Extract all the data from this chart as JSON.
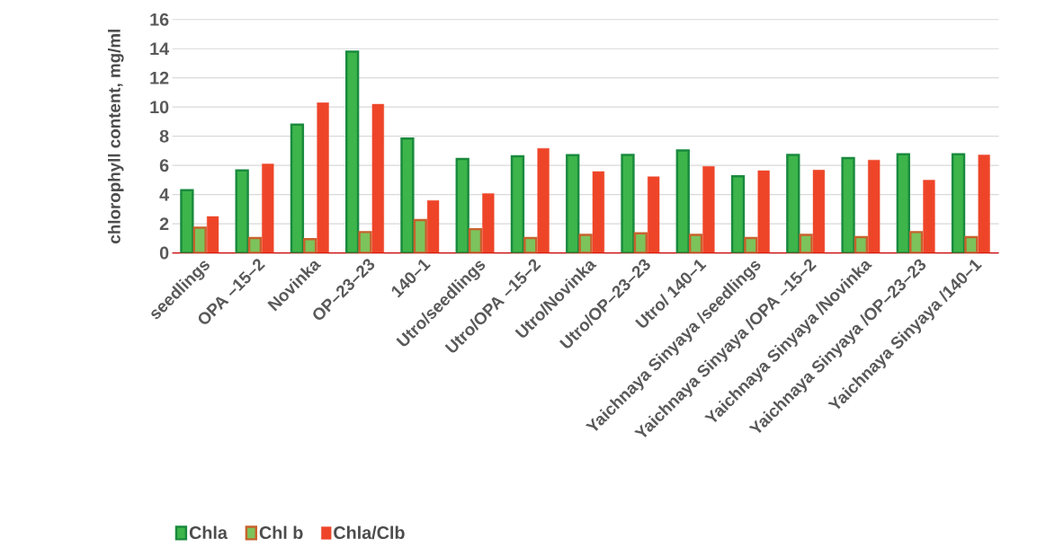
{
  "chart_data": {
    "type": "bar",
    "ylabel": "chlorophyll content, mg/ml",
    "categories": [
      "seedlings",
      "OPA –15–2",
      "Novinka",
      "OP–23–23",
      "140–1",
      "Utro/seedlings",
      "Utro/OPA –15–2",
      "Utro/Novinka",
      "Utro/OP–23–23",
      "Utro/ 140–1",
      "Yaichnaya Sinyaya /seedlings",
      "Yaichnaya Sinyaya /OPA –15–2",
      "Yaichnaya Sinyaya /Novinka",
      "Yaichnaya Sinyaya /OP–23–23",
      "Yaichnaya Sinyaya /140–1"
    ],
    "series": [
      {
        "name": "Chla",
        "color": "#3db54a",
        "values": [
          4.3,
          5.66,
          8.8,
          13.8,
          7.84,
          6.44,
          6.62,
          6.7,
          6.72,
          7.03,
          5.25,
          6.72,
          6.5,
          6.76,
          6.76
        ]
      },
      {
        "name": "Chl b",
        "color": "#7cc35c",
        "values": [
          1.73,
          1.02,
          0.94,
          1.43,
          2.26,
          1.63,
          1.02,
          1.24,
          1.34,
          1.24,
          1.02,
          1.24,
          1.08,
          1.43,
          1.08
        ]
      },
      {
        "name": "Chla/Clb",
        "color": "#ee4529",
        "values": [
          2.5,
          6.1,
          10.3,
          10.2,
          3.6,
          4.07,
          7.17,
          5.58,
          5.23,
          5.93,
          5.64,
          5.68,
          6.37,
          4.99,
          6.72
        ]
      }
    ],
    "ylim": [
      0,
      16
    ],
    "yticks": [
      0,
      2,
      4,
      6,
      8,
      10,
      12,
      14,
      16
    ],
    "grid": "y",
    "legend": "bottom left"
  }
}
